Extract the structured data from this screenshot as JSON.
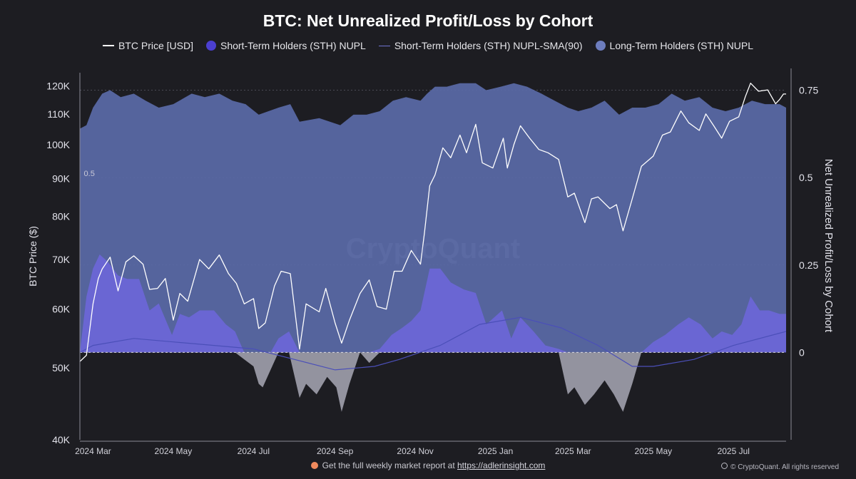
{
  "chart_data": {
    "type": "area",
    "title": "BTC: Net Unrealized Profit/Loss by Cohort",
    "ylabel_left": "BTC Price ($)",
    "ylabel_right": "Net Unrealized Profit/Loss by Cohort",
    "y_left_scale": "log",
    "y_left_ticks": [
      "120K",
      "110K",
      "100K",
      "90K",
      "80K",
      "70K",
      "60K",
      "50K",
      "40K"
    ],
    "y_left_tick_values": [
      120000,
      110000,
      100000,
      90000,
      80000,
      70000,
      60000,
      50000,
      40000
    ],
    "y_left_range": [
      40000,
      125000
    ],
    "y_right_ticks": [
      "0.75",
      "0.5",
      "0.25",
      "0"
    ],
    "y_right_tick_values": [
      0.75,
      0.5,
      0.25,
      0
    ],
    "y_right_range": [
      -0.25,
      0.8
    ],
    "x_ticks": [
      "2024 Mar",
      "2024 May",
      "2024 Jul",
      "2024 Sep",
      "2024 Nov",
      "2025 Jan",
      "2025 Mar",
      "2025 May",
      "2025 Jul"
    ],
    "x_tick_values": [
      "2024-03-01",
      "2024-05-01",
      "2024-07-01",
      "2024-09-01",
      "2024-11-01",
      "2025-01-01",
      "2025-03-01",
      "2025-05-01",
      "2025-07-01"
    ],
    "x_range": [
      "2024-02-20",
      "2025-08-10"
    ],
    "annotation": "0.5",
    "annotation_value": 0.5,
    "annotation_date": "2024-02-23",
    "watermark": "CryptoQuant",
    "legend": [
      "BTC Price [USD]",
      "Short-Term Holders (STH) NUPL",
      "Short-Term Holders (STH) NUPL-SMA(90)",
      "Long-Term Holders (STH) NUPL"
    ],
    "legend_position": "top",
    "grid": "horizontal dotted",
    "series": [
      {
        "name": "BTC Price [USD]",
        "axis": "left",
        "color": "#ffffff",
        "x": [
          "2024-02-20",
          "2024-02-25",
          "2024-03-01",
          "2024-03-05",
          "2024-03-08",
          "2024-03-14",
          "2024-03-20",
          "2024-03-26",
          "2024-04-01",
          "2024-04-08",
          "2024-04-13",
          "2024-04-19",
          "2024-04-25",
          "2024-05-01",
          "2024-05-06",
          "2024-05-12",
          "2024-05-21",
          "2024-05-28",
          "2024-06-05",
          "2024-06-12",
          "2024-06-18",
          "2024-06-24",
          "2024-07-01",
          "2024-07-05",
          "2024-07-10",
          "2024-07-17",
          "2024-07-22",
          "2024-07-29",
          "2024-08-05",
          "2024-08-10",
          "2024-08-20",
          "2024-08-25",
          "2024-09-01",
          "2024-09-06",
          "2024-09-12",
          "2024-09-20",
          "2024-09-27",
          "2024-10-03",
          "2024-10-10",
          "2024-10-16",
          "2024-10-22",
          "2024-10-29",
          "2024-11-05",
          "2024-11-08",
          "2024-11-12",
          "2024-11-16",
          "2024-11-22",
          "2024-11-28",
          "2024-12-05",
          "2024-12-10",
          "2024-12-17",
          "2024-12-22",
          "2024-12-30",
          "2025-01-07",
          "2025-01-10",
          "2025-01-15",
          "2025-01-20",
          "2025-01-27",
          "2025-02-03",
          "2025-02-10",
          "2025-02-18",
          "2025-02-25",
          "2025-03-02",
          "2025-03-10",
          "2025-03-15",
          "2025-03-20",
          "2025-03-29",
          "2025-04-03",
          "2025-04-08",
          "2025-04-15",
          "2025-04-22",
          "2025-05-01",
          "2025-05-08",
          "2025-05-14",
          "2025-05-22",
          "2025-05-28",
          "2025-06-05",
          "2025-06-10",
          "2025-06-16",
          "2025-06-22",
          "2025-06-28",
          "2025-07-05",
          "2025-07-10",
          "2025-07-14",
          "2025-07-20",
          "2025-07-27",
          "2025-08-02",
          "2025-08-05",
          "2025-08-08",
          "2025-08-10"
        ],
        "y": [
          51000,
          52000,
          61000,
          66000,
          68000,
          70500,
          63500,
          69500,
          70800,
          69000,
          63800,
          64000,
          66000,
          58000,
          63000,
          61500,
          70000,
          68000,
          71000,
          67000,
          65000,
          61000,
          62000,
          56500,
          57500,
          64500,
          67500,
          67000,
          53000,
          61000,
          59500,
          64000,
          57500,
          54000,
          58000,
          63000,
          65700,
          60500,
          60000,
          67500,
          67500,
          72000,
          69000,
          76000,
          88000,
          91000,
          99000,
          96000,
          103000,
          97500,
          106500,
          94500,
          93000,
          102000,
          93000,
          100000,
          106000,
          102000,
          98500,
          97500,
          95500,
          85000,
          86000,
          78500,
          84500,
          85000,
          82000,
          83000,
          76500,
          84500,
          93500,
          96500,
          103000,
          104000,
          111000,
          107000,
          104500,
          110000,
          106000,
          102000,
          107500,
          109000,
          116000,
          121000,
          118000,
          118500,
          113500,
          115000,
          117000,
          117000
        ]
      },
      {
        "name": "Short-Term Holders (STH) NUPL",
        "axis": "right",
        "color": "#6f73d0",
        "x": [
          "2024-02-20",
          "2024-02-25",
          "2024-03-01",
          "2024-03-06",
          "2024-03-12",
          "2024-03-20",
          "2024-03-27",
          "2024-04-05",
          "2024-04-13",
          "2024-04-20",
          "2024-04-30",
          "2024-05-06",
          "2024-05-13",
          "2024-05-21",
          "2024-06-01",
          "2024-06-10",
          "2024-06-17",
          "2024-06-24",
          "2024-07-01",
          "2024-07-05",
          "2024-07-08",
          "2024-07-14",
          "2024-07-20",
          "2024-07-28",
          "2024-08-05",
          "2024-08-10",
          "2024-08-18",
          "2024-08-26",
          "2024-09-02",
          "2024-09-06",
          "2024-09-12",
          "2024-09-20",
          "2024-09-27",
          "2024-10-05",
          "2024-10-14",
          "2024-10-22",
          "2024-10-29",
          "2024-11-05",
          "2024-11-12",
          "2024-11-20",
          "2024-11-28",
          "2024-12-08",
          "2024-12-17",
          "2024-12-25",
          "2025-01-06",
          "2025-01-13",
          "2025-01-20",
          "2025-01-30",
          "2025-02-08",
          "2025-02-18",
          "2025-02-25",
          "2025-03-02",
          "2025-03-10",
          "2025-03-17",
          "2025-03-25",
          "2025-04-01",
          "2025-04-08",
          "2025-04-15",
          "2025-04-22",
          "2025-05-01",
          "2025-05-10",
          "2025-05-20",
          "2025-05-28",
          "2025-06-06",
          "2025-06-15",
          "2025-06-22",
          "2025-06-30",
          "2025-07-07",
          "2025-07-14",
          "2025-07-21",
          "2025-07-28",
          "2025-08-05",
          "2025-08-10"
        ],
        "y": [
          0.0,
          0.16,
          0.24,
          0.28,
          0.26,
          0.22,
          0.21,
          0.21,
          0.12,
          0.14,
          0.05,
          0.11,
          0.1,
          0.12,
          0.12,
          0.08,
          0.06,
          -0.02,
          -0.04,
          -0.09,
          -0.1,
          -0.05,
          0.04,
          0.06,
          -0.13,
          -0.09,
          -0.12,
          -0.07,
          -0.1,
          -0.17,
          -0.09,
          0.0,
          -0.03,
          0.01,
          0.05,
          0.07,
          0.09,
          0.12,
          0.24,
          0.24,
          0.2,
          0.18,
          0.17,
          0.08,
          0.12,
          0.04,
          0.1,
          0.06,
          0.02,
          0.01,
          -0.12,
          -0.1,
          -0.15,
          -0.12,
          -0.08,
          -0.12,
          -0.17,
          -0.09,
          0.0,
          0.03,
          0.05,
          0.08,
          0.1,
          0.08,
          0.04,
          0.06,
          0.05,
          0.08,
          0.16,
          0.12,
          0.12,
          0.11,
          0.11
        ]
      },
      {
        "name": "Short-Term Holders (STH) NUPL-SMA(90)",
        "axis": "right",
        "color": "#5a5fc0",
        "x": [
          "2024-02-20",
          "2024-03-01",
          "2024-04-01",
          "2024-05-01",
          "2024-06-01",
          "2024-07-01",
          "2024-08-01",
          "2024-09-01",
          "2024-10-01",
          "2024-10-20",
          "2024-11-20",
          "2024-12-20",
          "2025-01-20",
          "2025-02-20",
          "2025-03-20",
          "2025-04-15",
          "2025-05-01",
          "2025-06-01",
          "2025-07-01",
          "2025-08-10"
        ],
        "y": [
          0.0,
          0.02,
          0.04,
          0.03,
          0.02,
          0.01,
          -0.02,
          -0.05,
          -0.04,
          -0.02,
          0.02,
          0.08,
          0.1,
          0.07,
          0.02,
          -0.04,
          -0.04,
          -0.02,
          0.02,
          0.06
        ]
      },
      {
        "name": "Long-Term Holders (STH) NUPL",
        "axis": "right",
        "color": "#5f6fb0",
        "x": [
          "2024-02-20",
          "2024-02-25",
          "2024-03-01",
          "2024-03-08",
          "2024-03-14",
          "2024-03-22",
          "2024-04-01",
          "2024-04-10",
          "2024-04-20",
          "2024-05-01",
          "2024-05-15",
          "2024-05-25",
          "2024-06-05",
          "2024-06-15",
          "2024-06-25",
          "2024-07-05",
          "2024-07-20",
          "2024-07-29",
          "2024-08-05",
          "2024-08-20",
          "2024-09-05",
          "2024-09-15",
          "2024-09-25",
          "2024-10-05",
          "2024-10-15",
          "2024-10-25",
          "2024-11-05",
          "2024-11-10",
          "2024-11-16",
          "2024-11-25",
          "2024-12-05",
          "2024-12-17",
          "2024-12-25",
          "2025-01-05",
          "2025-01-15",
          "2025-01-25",
          "2025-02-05",
          "2025-02-15",
          "2025-02-25",
          "2025-03-05",
          "2025-03-15",
          "2025-03-25",
          "2025-04-05",
          "2025-04-15",
          "2025-04-25",
          "2025-05-05",
          "2025-05-15",
          "2025-05-25",
          "2025-06-05",
          "2025-06-15",
          "2025-06-25",
          "2025-07-05",
          "2025-07-15",
          "2025-07-25",
          "2025-08-05",
          "2025-08-10"
        ],
        "y": [
          0.64,
          0.65,
          0.7,
          0.74,
          0.75,
          0.73,
          0.74,
          0.72,
          0.7,
          0.71,
          0.74,
          0.73,
          0.74,
          0.72,
          0.71,
          0.68,
          0.7,
          0.71,
          0.66,
          0.67,
          0.65,
          0.68,
          0.68,
          0.69,
          0.72,
          0.73,
          0.72,
          0.74,
          0.76,
          0.76,
          0.77,
          0.77,
          0.75,
          0.76,
          0.77,
          0.76,
          0.74,
          0.72,
          0.7,
          0.69,
          0.7,
          0.72,
          0.68,
          0.7,
          0.7,
          0.71,
          0.74,
          0.72,
          0.73,
          0.7,
          0.69,
          0.7,
          0.72,
          0.71,
          0.71,
          0.7
        ]
      }
    ]
  },
  "footer": {
    "report_text": "Get the full weekly market report at",
    "report_link": "https://adlerinsight.com",
    "copyright": "© CryptoQuant. All rights reserved"
  }
}
